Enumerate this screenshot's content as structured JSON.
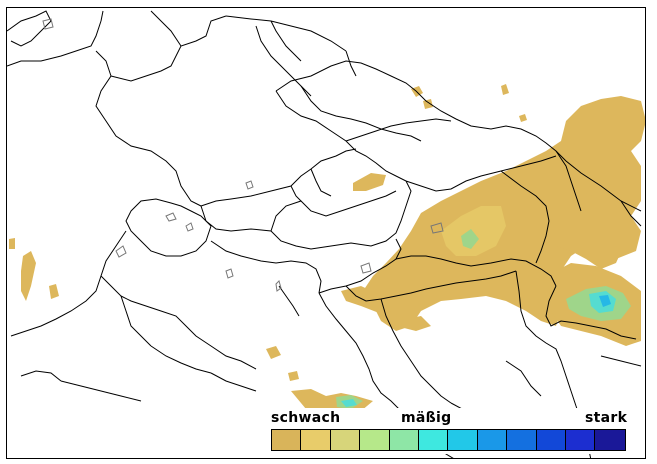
{
  "legend": {
    "label_low": "schwach",
    "label_mid": "mäßig",
    "label_high": "stark",
    "colors": [
      "#d9b45a",
      "#e8cc6a",
      "#d7d57a",
      "#b6e88a",
      "#8ee6a6",
      "#3ee8e0",
      "#22c8e8",
      "#1a98e8",
      "#1470e0",
      "#1248d8",
      "#1c2ed0",
      "#1a1898"
    ]
  },
  "map": {
    "background_color": "#ffffff",
    "border_color": "#000000",
    "river_color": "#808080",
    "precip_colors": {
      "weak": "#ddb75c",
      "light": "#e5c766",
      "moderate": "#9fd58a",
      "medium": "#55dcd0",
      "strong": "#26b8e6"
    }
  }
}
